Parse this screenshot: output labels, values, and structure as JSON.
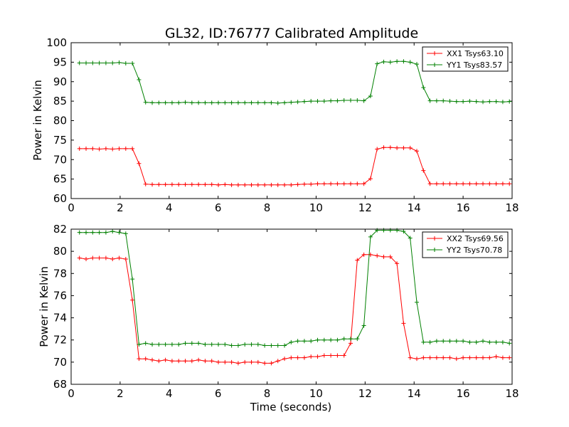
{
  "title": "GL32, ID:76777 Calibrated Amplitude",
  "chart_data": [
    {
      "type": "line",
      "xlabel": "",
      "ylabel": "Power in Kelvin",
      "xlim": [
        0,
        18
      ],
      "ylim": [
        60,
        100
      ],
      "xticks": [
        0,
        2,
        4,
        6,
        8,
        10,
        12,
        14,
        16,
        18
      ],
      "yticks": [
        60,
        65,
        70,
        75,
        80,
        85,
        90,
        95,
        100
      ],
      "grid": false,
      "legend_position": "top-right",
      "x": [
        0.34,
        0.61,
        0.88,
        1.15,
        1.42,
        1.69,
        1.96,
        2.23,
        2.5,
        2.77,
        3.04,
        3.31,
        3.58,
        3.85,
        4.12,
        4.39,
        4.66,
        4.93,
        5.2,
        5.47,
        5.74,
        6.01,
        6.28,
        6.55,
        6.82,
        7.09,
        7.36,
        7.63,
        7.9,
        8.17,
        8.44,
        8.71,
        8.98,
        9.25,
        9.52,
        9.79,
        10.06,
        10.33,
        10.6,
        10.87,
        11.14,
        11.41,
        11.68,
        11.95,
        12.22,
        12.49,
        12.76,
        13.03,
        13.3,
        13.57,
        13.84,
        14.11,
        14.38,
        14.65,
        14.92,
        15.19,
        15.46,
        15.73,
        16.0,
        16.27,
        16.54,
        16.81,
        17.08,
        17.35,
        17.62,
        17.89
      ],
      "series": [
        {
          "name": "XX1 Tsys63.10",
          "color": "#ff0000",
          "values": [
            72.8,
            72.8,
            72.8,
            72.7,
            72.8,
            72.7,
            72.8,
            72.8,
            72.8,
            69.0,
            63.7,
            63.6,
            63.6,
            63.6,
            63.6,
            63.6,
            63.6,
            63.6,
            63.6,
            63.6,
            63.6,
            63.5,
            63.6,
            63.5,
            63.5,
            63.5,
            63.5,
            63.5,
            63.5,
            63.5,
            63.5,
            63.5,
            63.5,
            63.6,
            63.7,
            63.7,
            63.8,
            63.8,
            63.8,
            63.8,
            63.8,
            63.8,
            63.8,
            63.8,
            65.1,
            72.7,
            73.1,
            73.1,
            73.0,
            73.0,
            73.0,
            72.2,
            67.2,
            63.8,
            63.8,
            63.8,
            63.8,
            63.8,
            63.8,
            63.8,
            63.8,
            63.8,
            63.8,
            63.8,
            63.8,
            63.8
          ]
        },
        {
          "name": "YY1 Tsys83.57",
          "color": "#008000",
          "values": [
            94.8,
            94.8,
            94.8,
            94.8,
            94.8,
            94.8,
            94.9,
            94.7,
            94.7,
            90.5,
            84.7,
            84.6,
            84.6,
            84.6,
            84.6,
            84.6,
            84.7,
            84.6,
            84.6,
            84.6,
            84.6,
            84.6,
            84.6,
            84.6,
            84.6,
            84.6,
            84.6,
            84.6,
            84.6,
            84.6,
            84.5,
            84.6,
            84.7,
            84.8,
            84.9,
            85.0,
            85.0,
            85.0,
            85.1,
            85.1,
            85.2,
            85.2,
            85.2,
            85.1,
            86.3,
            94.6,
            95.1,
            95.0,
            95.2,
            95.2,
            95.0,
            94.5,
            88.5,
            85.1,
            85.1,
            85.1,
            85.0,
            84.9,
            84.9,
            85.0,
            84.9,
            84.8,
            84.9,
            84.9,
            84.8,
            84.9
          ]
        }
      ]
    },
    {
      "type": "line",
      "xlabel": "Time (seconds)",
      "ylabel": "Power in Kelvin",
      "xlim": [
        0,
        18
      ],
      "ylim": [
        68,
        82
      ],
      "xticks": [
        0,
        2,
        4,
        6,
        8,
        10,
        12,
        14,
        16,
        18
      ],
      "yticks": [
        68,
        70,
        72,
        74,
        76,
        78,
        80,
        82
      ],
      "grid": false,
      "legend_position": "top-right",
      "x": [
        0.34,
        0.61,
        0.88,
        1.15,
        1.42,
        1.69,
        1.96,
        2.23,
        2.5,
        2.77,
        3.04,
        3.31,
        3.58,
        3.85,
        4.12,
        4.39,
        4.66,
        4.93,
        5.2,
        5.47,
        5.74,
        6.01,
        6.28,
        6.55,
        6.82,
        7.09,
        7.36,
        7.63,
        7.9,
        8.17,
        8.44,
        8.71,
        8.98,
        9.25,
        9.52,
        9.79,
        10.06,
        10.33,
        10.6,
        10.87,
        11.14,
        11.41,
        11.68,
        11.95,
        12.22,
        12.49,
        12.76,
        13.03,
        13.3,
        13.57,
        13.84,
        14.11,
        14.38,
        14.65,
        14.92,
        15.19,
        15.46,
        15.73,
        16.0,
        16.27,
        16.54,
        16.81,
        17.08,
        17.35,
        17.62,
        17.89
      ],
      "series": [
        {
          "name": "XX2 Tsys69.56",
          "color": "#ff0000",
          "values": [
            79.4,
            79.3,
            79.4,
            79.4,
            79.4,
            79.3,
            79.4,
            79.3,
            75.6,
            70.3,
            70.3,
            70.2,
            70.1,
            70.2,
            70.1,
            70.1,
            70.1,
            70.1,
            70.2,
            70.1,
            70.1,
            70.0,
            70.0,
            70.0,
            69.9,
            70.0,
            70.0,
            70.0,
            69.9,
            69.9,
            70.1,
            70.3,
            70.4,
            70.4,
            70.4,
            70.5,
            70.5,
            70.6,
            70.6,
            70.6,
            70.6,
            71.7,
            79.2,
            79.7,
            79.7,
            79.6,
            79.5,
            79.5,
            78.9,
            73.5,
            70.4,
            70.3,
            70.4,
            70.4,
            70.4,
            70.4,
            70.4,
            70.3,
            70.4,
            70.4,
            70.4,
            70.4,
            70.4,
            70.5,
            70.4,
            70.4
          ]
        },
        {
          "name": "YY2 Tsys70.78",
          "color": "#008000",
          "values": [
            81.7,
            81.7,
            81.7,
            81.7,
            81.7,
            81.8,
            81.7,
            81.6,
            77.5,
            71.6,
            71.7,
            71.6,
            71.6,
            71.6,
            71.6,
            71.6,
            71.7,
            71.7,
            71.7,
            71.6,
            71.6,
            71.6,
            71.6,
            71.5,
            71.5,
            71.6,
            71.6,
            71.6,
            71.5,
            71.5,
            71.5,
            71.5,
            71.8,
            71.9,
            71.9,
            71.9,
            72.0,
            72.0,
            72.0,
            72.0,
            72.1,
            72.1,
            72.1,
            73.3,
            81.3,
            81.9,
            81.9,
            81.9,
            81.9,
            81.8,
            81.2,
            75.4,
            71.8,
            71.8,
            71.9,
            71.9,
            71.9,
            71.9,
            71.9,
            71.8,
            71.8,
            71.9,
            71.8,
            71.8,
            71.8,
            71.7
          ]
        }
      ]
    }
  ]
}
